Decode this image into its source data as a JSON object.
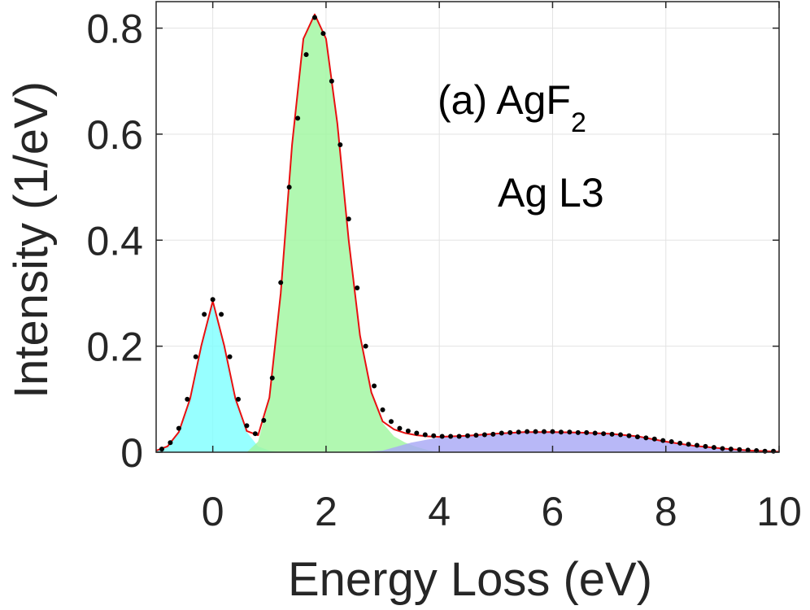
{
  "chart_data": {
    "type": "area",
    "xlabel": "Energy Loss (eV)",
    "ylabel": "Intensity (1/eV)",
    "xlim": [
      -1,
      10
    ],
    "ylim": [
      0,
      0.85
    ],
    "xticks": [
      0,
      2,
      4,
      6,
      8,
      10
    ],
    "xtick_labels": [
      "0",
      "2",
      "4",
      "6",
      "8",
      "10"
    ],
    "yticks": [
      0,
      0.2,
      0.4,
      0.6,
      0.8
    ],
    "ytick_labels": [
      "0",
      "0.2",
      "0.4",
      "0.6",
      "0.8"
    ],
    "grid": true,
    "annotation": {
      "line1_main": "(a) AgF",
      "line1_sub": "2",
      "line2": "Ag L3"
    },
    "components": [
      {
        "fill_color": "#80ffff",
        "x": [
          -1.0,
          -0.8,
          -0.6,
          -0.4,
          -0.2,
          0.0,
          0.2,
          0.4,
          0.6,
          0.8,
          1.0,
          1.2
        ],
        "y": [
          0.003,
          0.011,
          0.038,
          0.101,
          0.202,
          0.285,
          0.202,
          0.101,
          0.038,
          0.011,
          0.003,
          0.0
        ]
      },
      {
        "fill_color": "#a0f7a0",
        "x": [
          0.6,
          0.8,
          1.0,
          1.2,
          1.4,
          1.6,
          1.8,
          2.0,
          2.2,
          2.4,
          2.6,
          2.8,
          3.0,
          3.2,
          3.4,
          3.6,
          3.8,
          4.0
        ],
        "y": [
          0.0,
          0.02,
          0.1,
          0.3,
          0.58,
          0.78,
          0.826,
          0.78,
          0.62,
          0.4,
          0.22,
          0.11,
          0.055,
          0.03,
          0.018,
          0.01,
          0.004,
          0.0
        ]
      },
      {
        "fill_color": "#a8a8f5",
        "x": [
          2.6,
          3.0,
          3.5,
          4.0,
          4.5,
          5.0,
          5.5,
          6.0,
          6.5,
          7.0,
          7.5,
          8.0,
          8.5,
          9.0,
          9.5,
          10.0
        ],
        "y": [
          0.0,
          0.003,
          0.018,
          0.028,
          0.031,
          0.035,
          0.038,
          0.038,
          0.037,
          0.035,
          0.03,
          0.02,
          0.012,
          0.007,
          0.003,
          0.001
        ]
      }
    ],
    "fit_line": {
      "color": "#e81010",
      "x": [
        -1.0,
        -0.8,
        -0.6,
        -0.4,
        -0.2,
        0.0,
        0.2,
        0.4,
        0.6,
        0.8,
        1.0,
        1.2,
        1.4,
        1.6,
        1.8,
        2.0,
        2.2,
        2.4,
        2.6,
        2.8,
        3.0,
        3.2,
        3.4,
        3.6,
        3.8,
        4.0,
        4.5,
        5.0,
        5.5,
        6.0,
        6.5,
        7.0,
        7.5,
        8.0,
        8.5,
        9.0,
        9.5,
        10.0
      ],
      "y": [
        0.003,
        0.011,
        0.038,
        0.101,
        0.202,
        0.285,
        0.202,
        0.101,
        0.04,
        0.032,
        0.103,
        0.3,
        0.58,
        0.78,
        0.826,
        0.78,
        0.62,
        0.4,
        0.22,
        0.113,
        0.058,
        0.043,
        0.036,
        0.032,
        0.03,
        0.029,
        0.031,
        0.035,
        0.038,
        0.038,
        0.037,
        0.035,
        0.03,
        0.02,
        0.012,
        0.007,
        0.003,
        0.001
      ]
    },
    "data_points": {
      "color": "#000000",
      "x": [
        -0.9,
        -0.75,
        -0.6,
        -0.45,
        -0.3,
        -0.15,
        0.0,
        0.15,
        0.3,
        0.45,
        0.6,
        0.75,
        0.9,
        1.05,
        1.2,
        1.35,
        1.5,
        1.65,
        1.8,
        1.95,
        2.1,
        2.25,
        2.4,
        2.55,
        2.7,
        2.85,
        3.0,
        3.15,
        3.3,
        3.45,
        3.6,
        3.75,
        3.9,
        4.05,
        4.2,
        4.35,
        4.5,
        4.65,
        4.8,
        4.95,
        5.1,
        5.25,
        5.4,
        5.55,
        5.7,
        5.85,
        6.0,
        6.15,
        6.3,
        6.45,
        6.6,
        6.75,
        6.9,
        7.05,
        7.2,
        7.35,
        7.5,
        7.65,
        7.8,
        7.95,
        8.1,
        8.25,
        8.4,
        8.55,
        8.7,
        8.85,
        9.0,
        9.15,
        9.3,
        9.45,
        9.6,
        9.75,
        9.9
      ],
      "y": [
        0.006,
        0.018,
        0.045,
        0.1,
        0.18,
        0.26,
        0.288,
        0.26,
        0.18,
        0.1,
        0.05,
        0.035,
        0.06,
        0.14,
        0.32,
        0.5,
        0.63,
        0.75,
        0.82,
        0.79,
        0.7,
        0.58,
        0.44,
        0.31,
        0.2,
        0.125,
        0.08,
        0.058,
        0.045,
        0.04,
        0.036,
        0.033,
        0.031,
        0.03,
        0.03,
        0.03,
        0.031,
        0.032,
        0.033,
        0.034,
        0.036,
        0.037,
        0.038,
        0.039,
        0.039,
        0.039,
        0.039,
        0.038,
        0.038,
        0.037,
        0.037,
        0.036,
        0.035,
        0.034,
        0.033,
        0.031,
        0.029,
        0.027,
        0.025,
        0.022,
        0.02,
        0.017,
        0.015,
        0.013,
        0.011,
        0.009,
        0.007,
        0.006,
        0.005,
        0.004,
        0.003,
        0.002,
        0.002
      ]
    }
  }
}
